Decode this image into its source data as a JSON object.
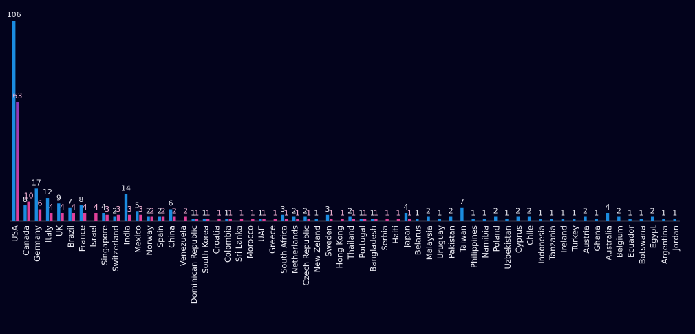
{
  "chart_data": {
    "type": "bar",
    "categories": [
      "USA",
      "Canada",
      "Germany",
      "Italy",
      "UK",
      "Brazil",
      "France",
      "Israel",
      "Singapore",
      "Switzerland",
      "India",
      "Mexico",
      "Norway",
      "Spain",
      "China",
      "Venezuela",
      "Dominican Republic",
      "South Korea",
      "Croatia",
      "Colombia",
      "Sri Lanka",
      "Morocco",
      "UAE",
      "Greece",
      "South Africa",
      "Netherlands",
      "Czech Republic",
      "New Zeland",
      "Sweden",
      "Hong Kong",
      "Thailand",
      "Portugal",
      "Bangladesh",
      "Serbia",
      "Haiti",
      "Japan",
      "Belarus",
      "Malaysia",
      "Uruguay",
      "Pakistan",
      "Taiwan",
      "Philippines",
      "Namibia",
      "Poland",
      "Uzbekistan",
      "Cyprus",
      "Chile",
      "Indonesia",
      "Tanzania",
      "Ireland",
      "Turkey",
      "Austria",
      "Ghana",
      "Australia",
      "Belgium",
      "Ecuador",
      "Botswana",
      "Egypt",
      "Argentina",
      "Jordan"
    ],
    "series": [
      {
        "color": "#1b8ce0",
        "values": [
          106,
          8,
          17,
          12,
          9,
          7,
          8,
          null,
          4,
          2,
          14,
          5,
          2,
          2,
          6,
          null,
          1,
          1,
          null,
          1,
          null,
          null,
          1,
          null,
          3,
          2,
          2,
          1,
          3,
          null,
          2,
          1,
          1,
          null,
          null,
          4,
          1,
          2,
          1,
          2,
          7,
          1,
          1,
          2,
          1,
          2,
          2,
          1,
          1,
          1,
          1,
          2,
          1,
          4,
          2,
          1,
          1,
          2,
          1,
          1
        ]
      },
      {
        "color": "#e0409a",
        "values": [
          63,
          10,
          6,
          4,
          4,
          4,
          4,
          4,
          3,
          3,
          3,
          3,
          2,
          2,
          2,
          2,
          1,
          1,
          1,
          1,
          1,
          1,
          1,
          1,
          1,
          1,
          1,
          null,
          1,
          1,
          1,
          1,
          1,
          1,
          1,
          1,
          null,
          null,
          null,
          null,
          null,
          null,
          null,
          null,
          null,
          null,
          null,
          null,
          null,
          null,
          null,
          null,
          null,
          null,
          null,
          null,
          null,
          null,
          null,
          null
        ]
      }
    ],
    "ylim": [
      0,
      110
    ],
    "grid": false,
    "legend": "none"
  }
}
